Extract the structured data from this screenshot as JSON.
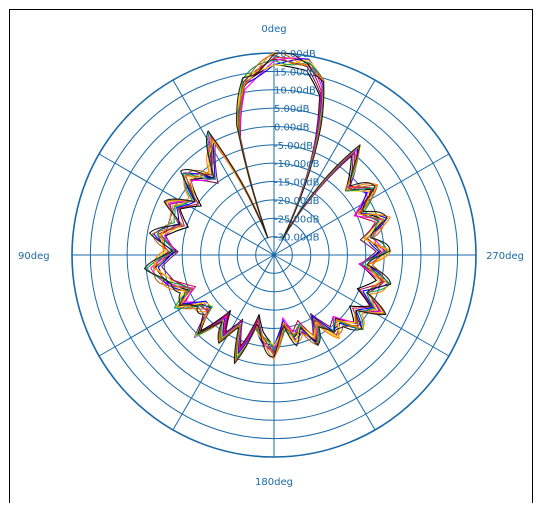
{
  "chart_data": {
    "type": "polar-line",
    "title": "",
    "angle_labels": {
      "top": "0deg",
      "left": "90deg",
      "bottom": "180deg",
      "right": "270deg"
    },
    "angle_direction": "counter-clockwise from top",
    "radial_unit": "dB",
    "radial_range": [
      -35,
      20
    ],
    "radial_tick_labels": [
      "20.00dB",
      "15.00dB",
      "10.00dB",
      "5.00dB",
      "0.00dB",
      "-5.00dB",
      "-10.00dB",
      "-15.00dB",
      "-20.00dB",
      "-25.00dB",
      "-30.00dB"
    ],
    "angular_grid_step_deg": 30,
    "grid": true,
    "colors": {
      "grid": "#1a6aa8",
      "label": "#1a6aa8"
    },
    "series_colors": [
      "#000000",
      "#7a1a5a",
      "#c01040",
      "#ff00ff",
      "#0000ff",
      "#ffd700",
      "#00a050",
      "#b5651d",
      "#ff7f00",
      "#202020"
    ],
    "base_pattern": {
      "angle_deg": [
        0,
        10,
        16,
        20,
        28,
        38,
        48,
        56,
        64,
        72,
        80,
        88,
        96,
        104,
        112,
        118,
        124,
        130,
        136,
        142,
        148,
        154,
        160,
        166,
        172,
        180,
        188,
        194,
        200,
        206,
        212,
        218,
        224,
        230,
        236,
        242,
        248,
        256,
        264,
        272,
        280,
        288,
        296,
        304,
        312,
        322,
        332,
        340,
        344,
        350,
        360
      ],
      "gain_db": [
        18,
        12.5,
        0,
        -30,
        1,
        -8,
        -3,
        -9,
        -4,
        -8,
        -3,
        -7,
        -2,
        -5,
        -10,
        -6,
        -11,
        -12,
        -5,
        -14,
        -8,
        -13,
        -6,
        -16,
        -12,
        -9,
        -16,
        -12,
        -14,
        -9,
        -14,
        -8,
        -10,
        -5,
        -8,
        -3,
        -8,
        -4,
        -10,
        -5,
        -9,
        -4,
        -9,
        -3,
        -8,
        1,
        -30,
        0,
        12.5,
        18,
        18
      ]
    }
  }
}
